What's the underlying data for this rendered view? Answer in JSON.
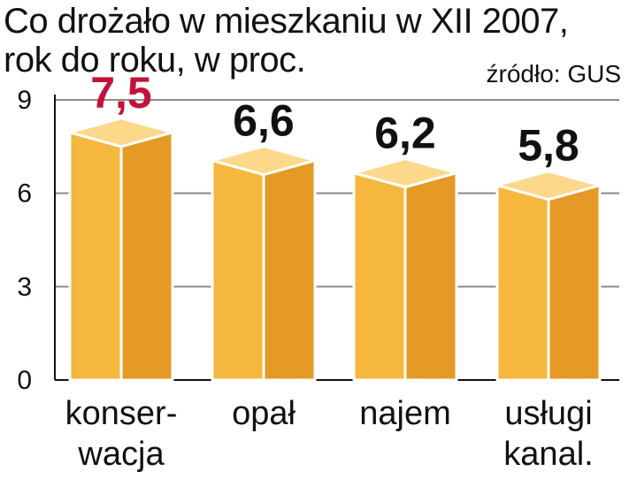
{
  "chart_data": {
    "type": "bar",
    "title_lines": [
      "Co drożało w mieszkaniu w XII 2007,",
      "rok do roku, w proc."
    ],
    "source": "źródło: GUS",
    "categories": [
      {
        "lines": [
          "konser-",
          "wacja"
        ]
      },
      {
        "lines": [
          "opał"
        ]
      },
      {
        "lines": [
          "najem"
        ]
      },
      {
        "lines": [
          "usługi",
          "kanal."
        ]
      }
    ],
    "values": [
      7.5,
      6.6,
      6.2,
      5.8
    ],
    "value_labels": [
      "7,5",
      "6,6",
      "6,2",
      "5,8"
    ],
    "highlight_index": 0,
    "ylim": [
      0,
      9
    ],
    "yticks": [
      0,
      3,
      6,
      9
    ],
    "grid": true,
    "colors": {
      "bar_front": "#f6b73e",
      "bar_side": "#e49a24",
      "bar_top": "#fbd88a",
      "outline": "#ffffff",
      "highlight_label": "#c4123c",
      "label": "#111111",
      "grid": "#8a8a8a"
    }
  }
}
